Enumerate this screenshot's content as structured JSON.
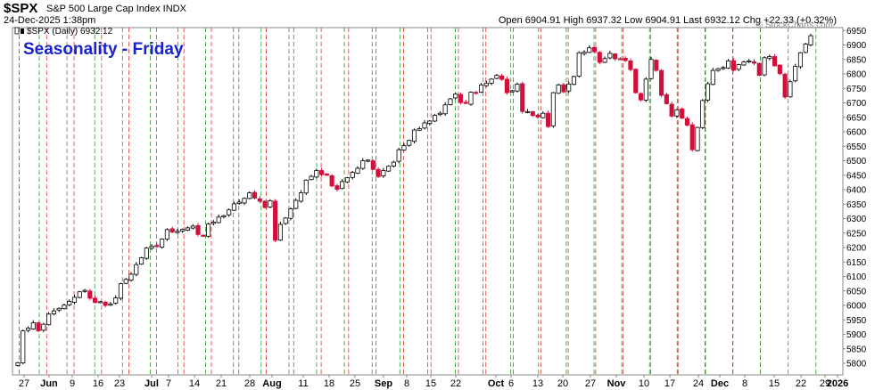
{
  "header": {
    "symbol": "$SPX",
    "name": "S&P 500 Large Cap Index INDX",
    "date": "24-Dec-2025 1:38pm",
    "ohlc": "Open 6904.91  High 6937.32  Low 6904.91  Last 6932.12  Chg +22.33 (+0.32%)",
    "watermark": "© StockCharts.com"
  },
  "chart_data": {
    "type": "candlestick",
    "title": "Seasonality - Friday",
    "legend": "$SPX (Daily) 6932.12",
    "ylim": [
      5760,
      6960
    ],
    "yticks": [
      5800,
      5850,
      5900,
      5950,
      6000,
      6050,
      6100,
      6150,
      6200,
      6250,
      6300,
      6350,
      6400,
      6450,
      6500,
      6550,
      6600,
      6650,
      6700,
      6750,
      6800,
      6850,
      6900,
      6950
    ],
    "xticks": [
      "27",
      "Jun",
      "9",
      "16",
      "23",
      "Jul",
      "7",
      "14",
      "21",
      "28",
      "Aug",
      "11",
      "18",
      "25",
      "Sep",
      "8",
      "15",
      "22",
      "Oct",
      "6",
      "13",
      "20",
      "27",
      "Nov",
      "10",
      "17",
      "24",
      "Dec",
      "8",
      "15",
      "22",
      "29",
      "2026"
    ],
    "grid_lines": {
      "red": "Monday",
      "green": "Friday"
    },
    "series_close": [
      5802,
      5912,
      5921,
      5940,
      5912,
      5935,
      5970,
      5981,
      5990,
      6001,
      6014,
      6028,
      6047,
      6052,
      6025,
      6010,
      6013,
      6000,
      6005,
      6026,
      6075,
      6090,
      6108,
      6141,
      6165,
      6198,
      6205,
      6203,
      6229,
      6262,
      6253,
      6256,
      6263,
      6268,
      6274,
      6245,
      6239,
      6281,
      6288,
      6305,
      6310,
      6330,
      6351,
      6357,
      6370,
      6389,
      6371,
      6360,
      6338,
      6362,
      6225,
      6280,
      6302,
      6334,
      6363,
      6389,
      6433,
      6446,
      6466,
      6452,
      6450,
      6413,
      6401,
      6428,
      6441,
      6460,
      6474,
      6500,
      6502,
      6470,
      6445,
      6466,
      6481,
      6495,
      6538,
      6552,
      6570,
      6606,
      6611,
      6631,
      6637,
      6657,
      6664,
      6693,
      6714,
      6730,
      6701,
      6698,
      6737,
      6735,
      6762,
      6768,
      6782,
      6795,
      6781,
      6735,
      6742,
      6765,
      6670,
      6670,
      6656,
      6651,
      6664,
      6618,
      6735,
      6762,
      6738,
      6765,
      6791,
      6873,
      6875,
      6890,
      6877,
      6840,
      6853,
      6871,
      6852,
      6851,
      6846,
      6815,
      6735,
      6710,
      6782,
      6850,
      6812,
      6726,
      6697,
      6654,
      6676,
      6647,
      6623,
      6538,
      6615,
      6708,
      6766,
      6812,
      6818,
      6822,
      6845,
      6813,
      6832,
      6841,
      6845,
      6837,
      6795,
      6856,
      6860,
      6828,
      6801,
      6720,
      6773,
      6826,
      6873,
      6903,
      6932
    ]
  }
}
